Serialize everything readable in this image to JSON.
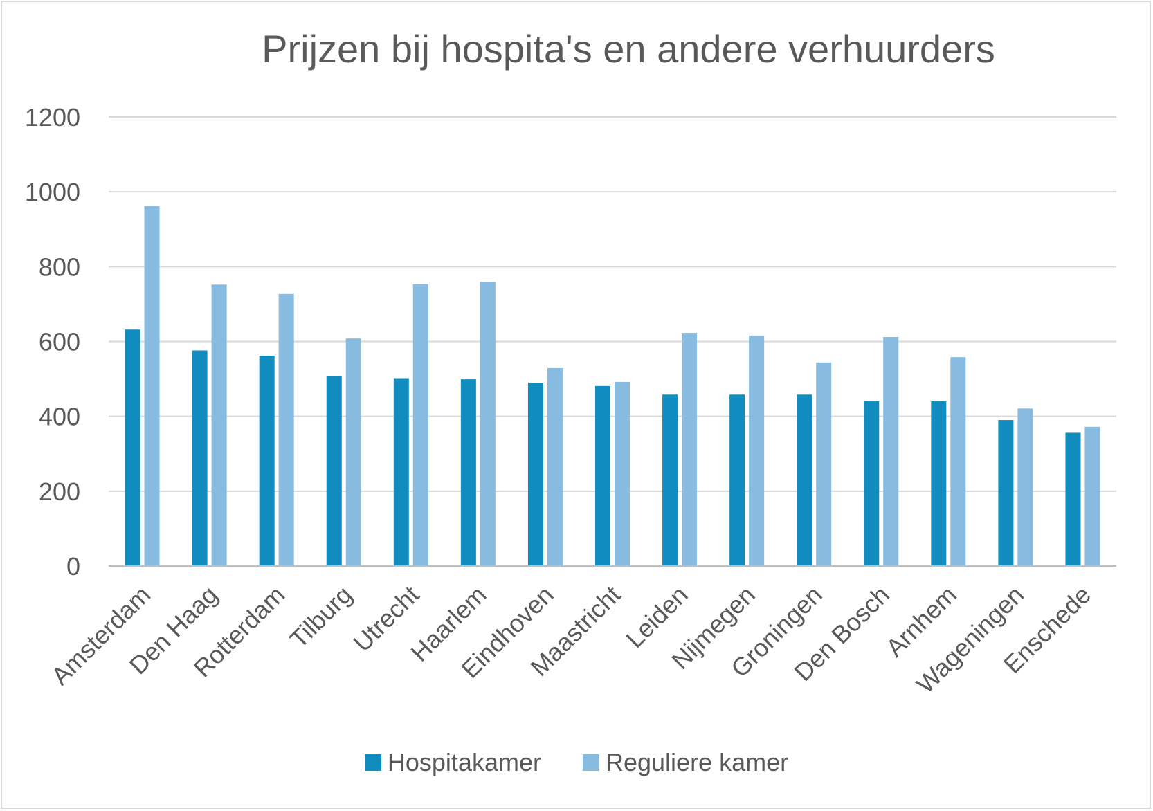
{
  "chart_data": {
    "type": "bar",
    "title": "Prijzen bij hospita's en andere verhuurders",
    "xlabel": "",
    "ylabel": "",
    "ylim": [
      0,
      1200
    ],
    "yticks": [
      0,
      200,
      400,
      600,
      800,
      1000,
      1200
    ],
    "grid": true,
    "legend_position": "bottom",
    "categories": [
      "Amsterdam",
      "Den Haag",
      "Rotterdam",
      "Tilburg",
      "Utrecht",
      "Haarlem",
      "Eindhoven",
      "Maastricht",
      "Leiden",
      "Nijmegen",
      "Groningen",
      "Den Bosch",
      "Arnhem",
      "Wageningen",
      "Enschede"
    ],
    "series": [
      {
        "name": "Hospitakamer",
        "color": "#108cbf",
        "values": [
          632,
          576,
          562,
          507,
          502,
          499,
          490,
          481,
          458,
          458,
          458,
          440,
          440,
          390,
          356
        ]
      },
      {
        "name": "Reguliere kamer",
        "color": "#87bbe0",
        "values": [
          962,
          752,
          727,
          608,
          753,
          759,
          529,
          492,
          623,
          616,
          544,
          612,
          558,
          421,
          372
        ]
      }
    ]
  }
}
